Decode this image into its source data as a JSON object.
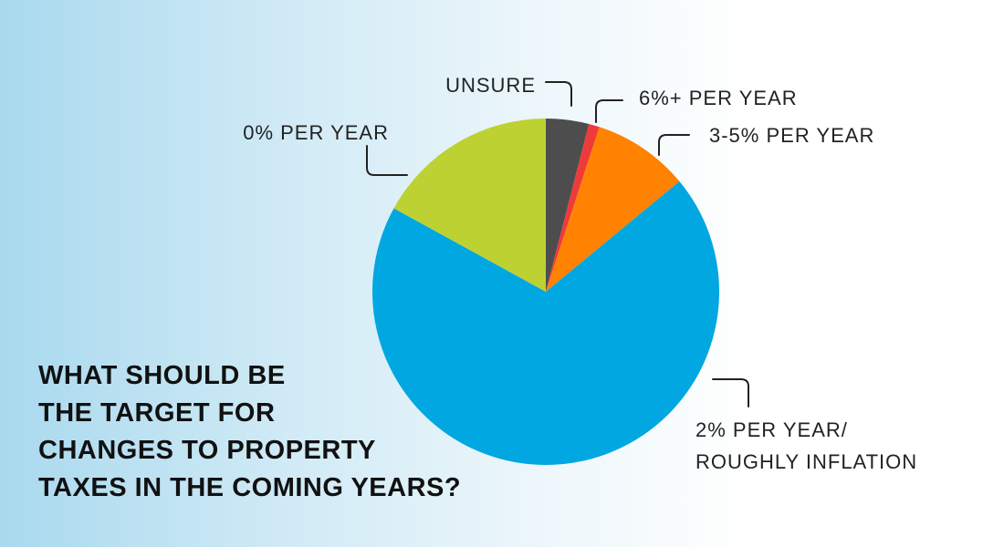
{
  "chart_data": {
    "type": "pie",
    "title_lines": [
      "WHAT SHOULD BE",
      "THE TARGET FOR",
      "CHANGES TO PROPERTY",
      "TAXES IN THE COMING YEARS?"
    ],
    "slices": [
      {
        "label": "UNSURE",
        "value": 4,
        "color": "#4d4d4d"
      },
      {
        "label": "6%+ PER YEAR",
        "value": 1,
        "color": "#ee3a3a"
      },
      {
        "label": "3-5% PER YEAR",
        "value": 9,
        "color": "#ff8200"
      },
      {
        "label": "2% PER YEAR/ ROUGHLY INFLATION",
        "value": 69,
        "color": "#00a7e1"
      },
      {
        "label": "0% PER YEAR",
        "value": 17,
        "color": "#bdd133"
      }
    ]
  }
}
